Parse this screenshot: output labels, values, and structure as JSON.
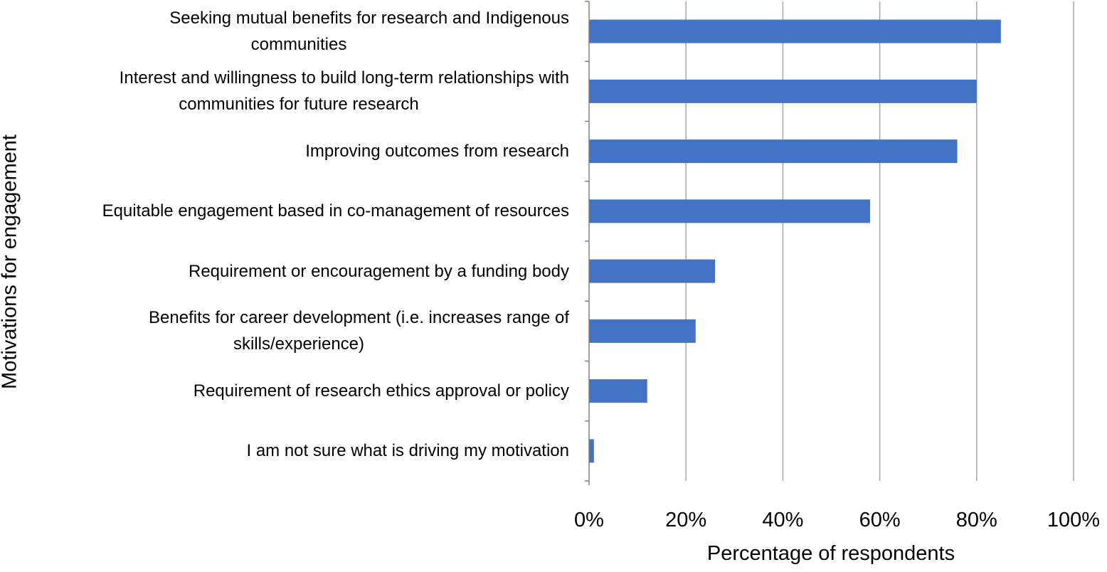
{
  "chart_data": {
    "type": "bar",
    "orientation": "horizontal",
    "categories": [
      "Seeking mutual benefits for research and Indigenous communities",
      "Interest and willingness to build long-term relationships with communities for future research",
      "Improving outcomes from research",
      "Equitable engagement based in co-management of resources",
      "Requirement or encouragement by a funding body",
      "Benefits for career development (i.e. increases range of skills/experience)",
      "Requirement of research ethics approval or policy",
      "I am not sure what is driving my motivation"
    ],
    "category_lines": [
      [
        "Seeking mutual benefits for research and Indigenous",
        "communities"
      ],
      [
        "Interest and willingness to build long-term relationships with",
        "communities for future research"
      ],
      [
        "Improving outcomes from research"
      ],
      [
        "Equitable engagement based in co-management of resources"
      ],
      [
        "Requirement or encouragement by a funding body"
      ],
      [
        "Benefits for career development (i.e. increases range of",
        "skills/experience)"
      ],
      [
        "Requirement of research ethics approval or policy"
      ],
      [
        "I am not sure what is driving my motivation"
      ]
    ],
    "values": [
      85,
      80,
      76,
      58,
      26,
      22,
      12,
      1
    ],
    "xlabel": "Percentage of respondents",
    "ylabel": "Motivations for engagement",
    "xlim": [
      0,
      100
    ],
    "xticks": [
      "0%",
      "20%",
      "40%",
      "60%",
      "80%",
      "100%"
    ],
    "grid": true,
    "bar_color": "#4472C4",
    "gridline_color": "#A6A6A6"
  }
}
